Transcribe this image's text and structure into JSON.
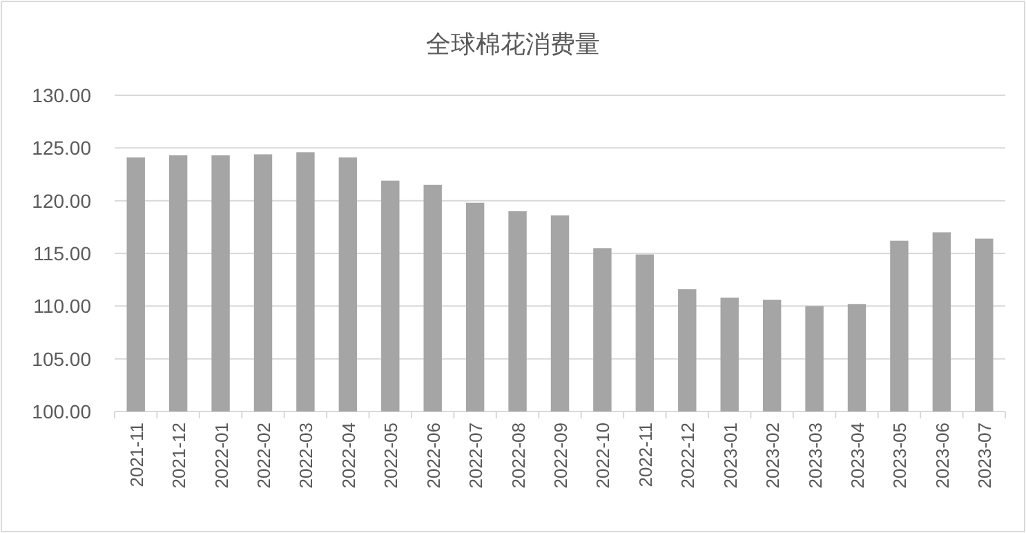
{
  "chart_data": {
    "type": "bar",
    "title": "全球棉花消费量",
    "categories": [
      "2021-11",
      "2021-12",
      "2022-01",
      "2022-02",
      "2022-03",
      "2022-04",
      "2022-05",
      "2022-06",
      "2022-07",
      "2022-08",
      "2022-09",
      "2022-10",
      "2022-11",
      "2022-12",
      "2023-01",
      "2023-02",
      "2023-03",
      "2023-04",
      "2023-05",
      "2023-06",
      "2023-07"
    ],
    "values": [
      124.1,
      124.3,
      124.3,
      124.4,
      124.6,
      124.1,
      121.9,
      121.5,
      119.8,
      119.0,
      118.6,
      115.5,
      114.9,
      111.6,
      110.8,
      110.6,
      110.0,
      110.2,
      116.2,
      117.0,
      116.4
    ],
    "color": "#a5a5a5",
    "ylim": [
      100,
      130
    ],
    "yticks": [
      {
        "value": 100,
        "label": "100.00"
      },
      {
        "value": 105,
        "label": "105.00"
      },
      {
        "value": 110,
        "label": "110.00"
      },
      {
        "value": 115,
        "label": "115.00"
      },
      {
        "value": 120,
        "label": "120.00"
      },
      {
        "value": 125,
        "label": "125.00"
      },
      {
        "value": 130,
        "label": "130.00"
      }
    ],
    "grid": "y"
  }
}
